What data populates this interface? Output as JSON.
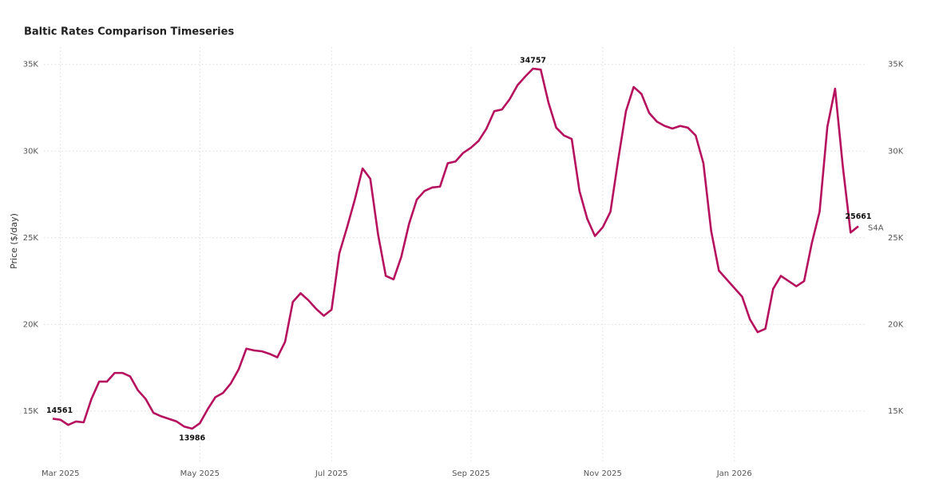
{
  "chart_data": {
    "type": "line",
    "title": "Baltic Rates Comparison Timeseries",
    "y_label": "Price ($/day)",
    "categories": [
      null,
      "Mar 2025",
      null,
      null,
      null,
      null,
      null,
      null,
      null,
      null,
      null,
      null,
      null,
      null,
      null,
      null,
      null,
      null,
      null,
      "May 2025",
      null,
      null,
      null,
      null,
      null,
      null,
      null,
      null,
      null,
      null,
      null,
      null,
      null,
      null,
      null,
      null,
      "Jul 2025",
      null,
      null,
      null,
      null,
      null,
      null,
      null,
      null,
      null,
      null,
      null,
      null,
      null,
      null,
      null,
      null,
      null,
      "Sep 2025",
      null,
      null,
      null,
      null,
      null,
      null,
      null,
      null,
      null,
      null,
      null,
      null,
      null,
      null,
      null,
      null,
      "Nov 2025",
      null,
      null,
      null,
      null,
      null,
      null,
      null,
      null,
      null,
      null,
      null,
      null,
      null,
      null,
      null,
      null,
      "Jan 2026",
      null,
      null,
      null,
      null,
      null,
      null,
      null,
      null,
      null,
      null,
      null,
      null,
      null,
      null,
      null,
      null
    ],
    "series": [
      {
        "name": "S4A",
        "color": "#b5115e",
        "values": [
          14561,
          14500,
          14200,
          14400,
          14350,
          15700,
          16700,
          16700,
          17200,
          17200,
          17000,
          16200,
          15700,
          14900,
          14700,
          14550,
          14400,
          14100,
          13986,
          14300,
          15100,
          15800,
          16050,
          16600,
          17400,
          18600,
          18500,
          18450,
          18300,
          18100,
          19000,
          21300,
          21800,
          21400,
          20900,
          20500,
          20850,
          24100,
          25600,
          27200,
          29000,
          28400,
          25200,
          22800,
          22600,
          23900,
          25800,
          27200,
          27700,
          27900,
          27950,
          29300,
          29400,
          29900,
          30200,
          30600,
          31300,
          32300,
          32400,
          33000,
          33800,
          34300,
          34757,
          34700,
          32800,
          31350,
          30900,
          30700,
          27700,
          26100,
          25100,
          25600,
          26500,
          29500,
          32300,
          33700,
          33300,
          32200,
          31700,
          31450,
          31300,
          31450,
          31350,
          30900,
          29300,
          25400,
          23100,
          22600,
          22100,
          21600,
          20300,
          19550,
          19750,
          22050,
          22800,
          22500,
          22200,
          22500,
          24700,
          26500,
          31400,
          33600,
          29100,
          25300,
          25661
        ]
      }
    ],
    "ylim": [
      12000,
      36000
    ],
    "yticks": [
      {
        "value": 15000,
        "label": "15K"
      },
      {
        "value": 20000,
        "label": "20K"
      },
      {
        "value": 25000,
        "label": "25K"
      },
      {
        "value": 30000,
        "label": "30K"
      },
      {
        "value": 35000,
        "label": "35K"
      }
    ],
    "grid": true
  }
}
